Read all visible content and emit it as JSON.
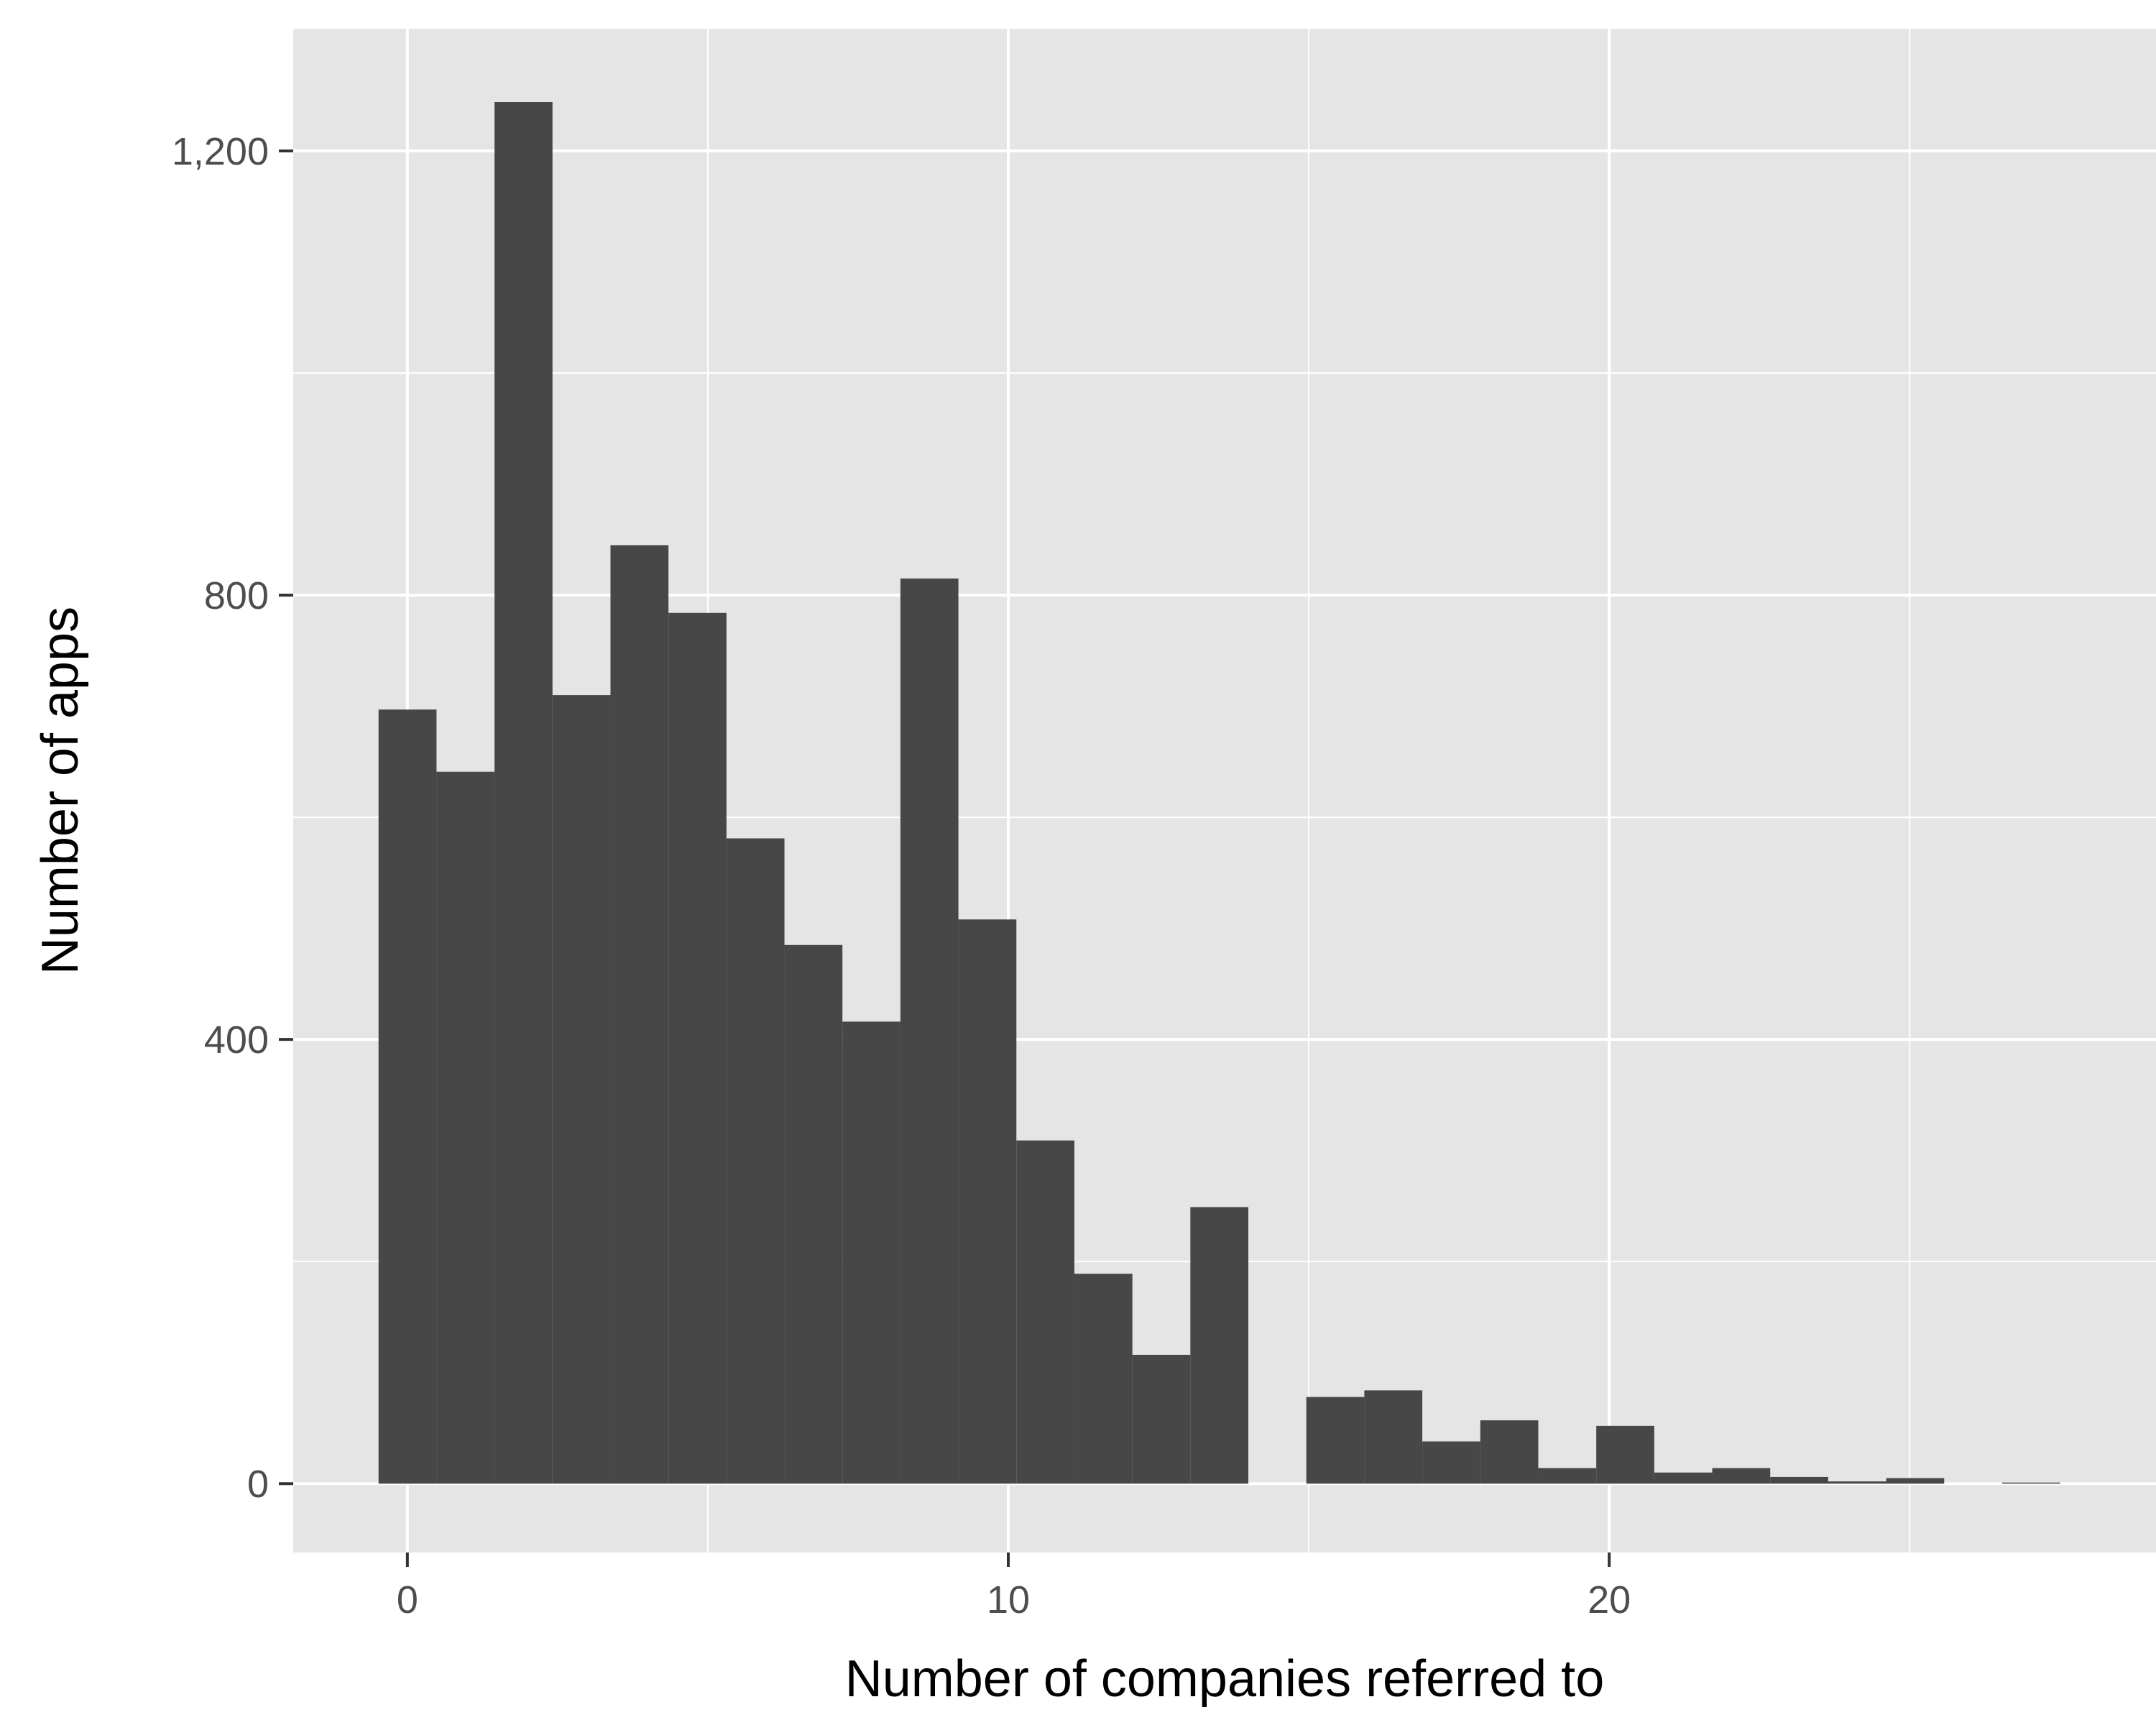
{
  "chart_data": {
    "type": "bar",
    "title": "",
    "xlabel": "Number of companies referred to",
    "ylabel": "Number of apps",
    "xlim": [
      -1.9,
      29.1
    ],
    "ylim": [
      -62,
      1310
    ],
    "x_ticks": [
      0,
      10,
      20
    ],
    "x_tick_labels": [
      "0",
      "10",
      "20"
    ],
    "y_ticks": [
      0,
      400,
      800,
      1200
    ],
    "y_tick_labels": [
      "0",
      "400",
      "800",
      "1,200"
    ],
    "y_minor_gridlines": [
      200,
      600,
      1000
    ],
    "x_minor_gridlines": [
      5,
      15,
      25
    ],
    "grid": true,
    "bin_width": 0.965,
    "bin_start": -0.48,
    "x": [
      0,
      1,
      2,
      3,
      4,
      5,
      6,
      7,
      8,
      9,
      10,
      11,
      12,
      13,
      14,
      15,
      16,
      17,
      18,
      19,
      20,
      21,
      22,
      23,
      24,
      25,
      26,
      27,
      28
    ],
    "values": [
      697,
      641,
      1244,
      710,
      845,
      784,
      581,
      485,
      416,
      815,
      508,
      309,
      189,
      116,
      249,
      0,
      78,
      84,
      38,
      57,
      14,
      52,
      10,
      14,
      6,
      2,
      5,
      0,
      1
    ],
    "colors": {
      "bar": "#474747",
      "panel": "#e5e5e5",
      "grid": "#ffffff",
      "tick": "#333333"
    }
  }
}
